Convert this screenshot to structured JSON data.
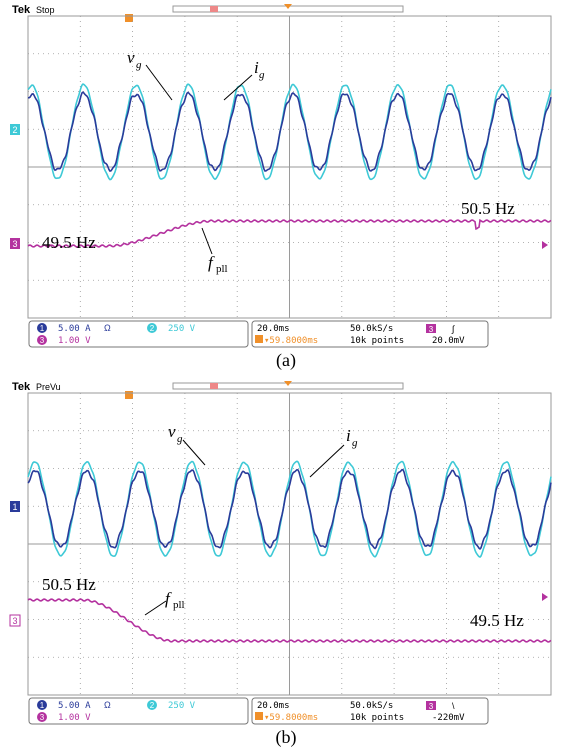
{
  "colors": {
    "ch1": "#2a3b9a",
    "ch2": "#3ec9d6",
    "ch3": "#b4329f",
    "grid": "#9a9a9a",
    "trigger": "#f0902a"
  },
  "chart_data": [
    {
      "type": "line",
      "caption": "(a)",
      "brand": "Tek",
      "status": "Stop",
      "annotations": {
        "vg": "v",
        "vg_sub": "g",
        "ig": "i",
        "ig_sub": "g",
        "fpll": "f",
        "fpll_sub": "pll",
        "freq_left": "49.5 Hz",
        "freq_right": "50.5 Hz"
      },
      "markers": {
        "ch2": "2",
        "ch3": "3"
      },
      "readouts": {
        "ch1_num": "1",
        "ch1_scale": "5.00 A",
        "ch1_extra": "Ω",
        "ch2_num": "2",
        "ch2_scale": "250 V",
        "ch3_num": "3",
        "ch3_scale": "1.00 V",
        "timebase": "20.0ms",
        "sample_rate": "50.0kS/s",
        "trig_src": "3",
        "trig_symbol": "∫",
        "position": "▾59.8000ms",
        "points": "10k points",
        "trig_level": "20.0mV"
      },
      "freq_step": {
        "from_hz": 49.5,
        "to_hz": 50.5,
        "direction": "up"
      },
      "series": [
        {
          "channel": "ch2",
          "unit": "V",
          "cycles_on_screen": 10
        },
        {
          "channel": "ch1",
          "unit": "A",
          "cycles_on_screen": 10
        },
        {
          "channel": "ch3",
          "unit": "V"
        }
      ],
      "grid": true,
      "divisions": {
        "x": 10,
        "y": 8
      }
    },
    {
      "type": "line",
      "caption": "(b)",
      "brand": "Tek",
      "status": "PreVu",
      "annotations": {
        "vg": "v",
        "vg_sub": "g",
        "ig": "i",
        "ig_sub": "g",
        "fpll": "f",
        "fpll_sub": "pll",
        "freq_left": "50.5 Hz",
        "freq_right": "49.5 Hz"
      },
      "markers": {
        "ch2": "1",
        "ch3": "3"
      },
      "readouts": {
        "ch1_num": "1",
        "ch1_scale": "5.00 A",
        "ch1_extra": "Ω",
        "ch2_num": "2",
        "ch2_scale": "250 V",
        "ch3_num": "3",
        "ch3_scale": "1.00 V",
        "timebase": "20.0ms",
        "sample_rate": "50.0kS/s",
        "trig_src": "3",
        "trig_symbol": "\\",
        "position": "▾59.8000ms",
        "points": "10k points",
        "trig_level": "-220mV"
      },
      "freq_step": {
        "from_hz": 50.5,
        "to_hz": 49.5,
        "direction": "down"
      },
      "series": [
        {
          "channel": "ch2",
          "unit": "V",
          "cycles_on_screen": 10
        },
        {
          "channel": "ch1",
          "unit": "A",
          "cycles_on_screen": 10
        },
        {
          "channel": "ch3",
          "unit": "V"
        }
      ],
      "grid": true,
      "divisions": {
        "x": 10,
        "y": 8
      }
    }
  ]
}
